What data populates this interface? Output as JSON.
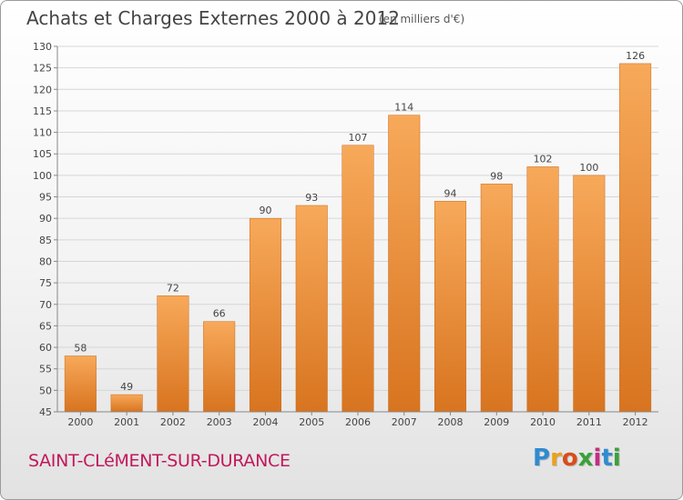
{
  "header": {
    "title": "Achats et Charges Externes 2000 à 2012",
    "subtitle": "(en milliers d'€)"
  },
  "footer": {
    "city": "SAINT-CLéMENT-SUR-DURANCE",
    "brand": [
      "P",
      "r",
      "o",
      "x",
      "i",
      "t",
      "i"
    ]
  },
  "colors": {
    "bar_light": "#f7a95a",
    "bar_dark": "#d8741f",
    "city": "#c2185b"
  },
  "chart_data": {
    "type": "bar",
    "categories": [
      "2000",
      "2001",
      "2002",
      "2003",
      "2004",
      "2005",
      "2006",
      "2007",
      "2008",
      "2009",
      "2010",
      "2011",
      "2012"
    ],
    "values": [
      58,
      49,
      72,
      66,
      90,
      93,
      107,
      114,
      94,
      98,
      102,
      100,
      126
    ],
    "ylim": [
      45,
      130
    ],
    "yticks": [
      45,
      50,
      55,
      60,
      65,
      70,
      75,
      80,
      85,
      90,
      95,
      100,
      105,
      110,
      115,
      120,
      125,
      130
    ],
    "grid": true
  }
}
